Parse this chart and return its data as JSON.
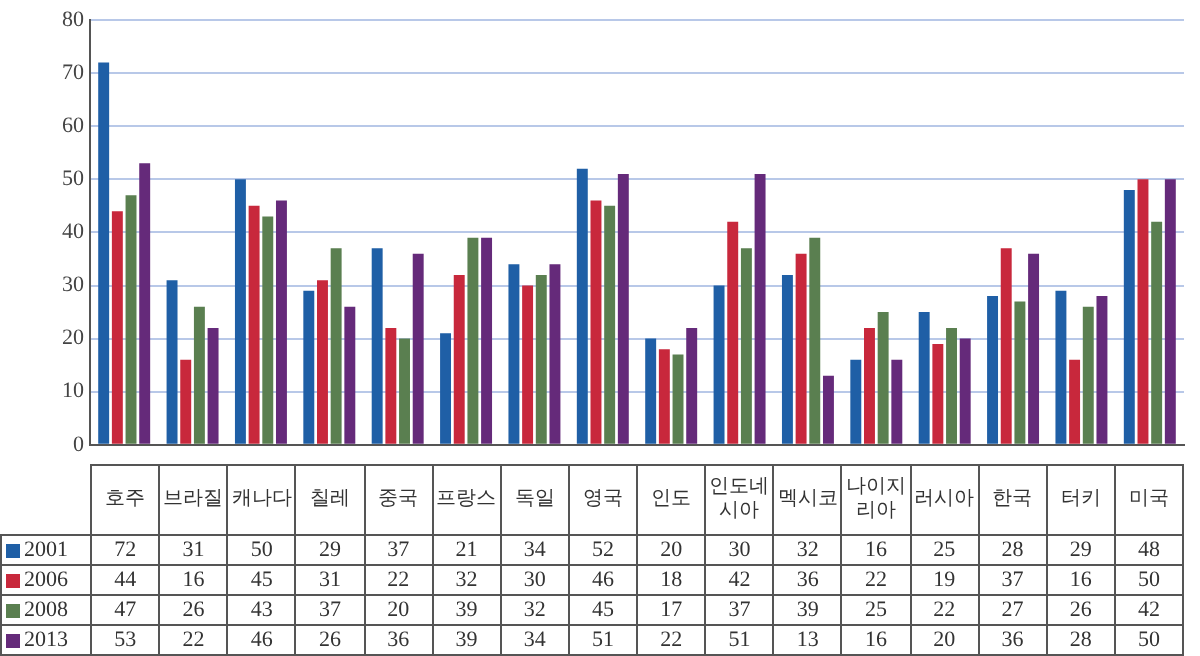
{
  "chart_data": {
    "type": "bar",
    "categories": [
      "호주",
      "브라질",
      "캐나다",
      "칠레",
      "중국",
      "프랑스",
      "독일",
      "영국",
      "인도",
      "인도네시아",
      "멕시코",
      "나이지리아",
      "러시아",
      "한국",
      "터키",
      "미국"
    ],
    "series": [
      {
        "name": "2001",
        "color": "#1f5fa6",
        "values": [
          72,
          31,
          50,
          29,
          37,
          21,
          34,
          52,
          20,
          30,
          32,
          16,
          25,
          28,
          29,
          48
        ]
      },
      {
        "name": "2006",
        "color": "#c8283c",
        "values": [
          44,
          16,
          45,
          31,
          22,
          32,
          30,
          46,
          18,
          42,
          36,
          22,
          19,
          37,
          16,
          50
        ]
      },
      {
        "name": "2008",
        "color": "#5a7f50",
        "values": [
          47,
          26,
          43,
          37,
          20,
          39,
          32,
          45,
          17,
          37,
          39,
          25,
          22,
          27,
          26,
          42
        ]
      },
      {
        "name": "2013",
        "color": "#652a7a",
        "values": [
          53,
          22,
          46,
          26,
          36,
          39,
          34,
          51,
          22,
          51,
          13,
          16,
          20,
          36,
          28,
          50
        ]
      }
    ],
    "ylim": [
      0,
      80
    ],
    "yticks": [
      0,
      10,
      20,
      30,
      40,
      50,
      60,
      70,
      80
    ],
    "grid": "y",
    "legend": "bottom left",
    "data_labels": true
  }
}
